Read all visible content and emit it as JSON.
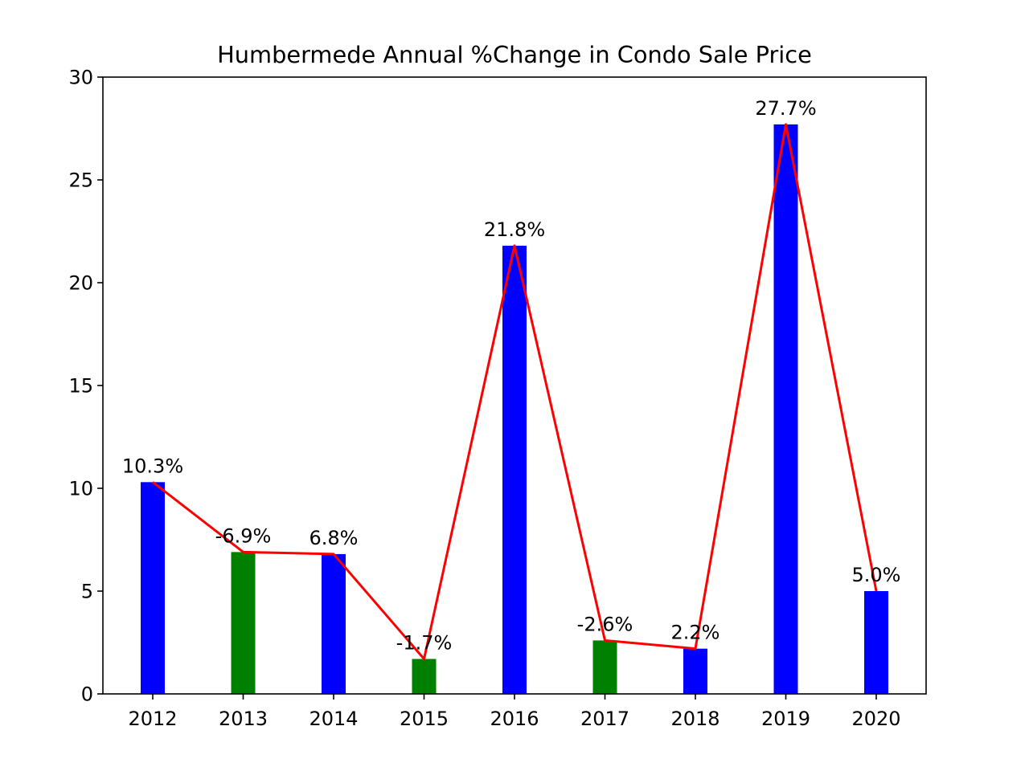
{
  "chart_data": {
    "type": "bar",
    "title": "Humbermede Annual %Change in Condo Sale Price",
    "xlabel": "",
    "ylabel": "",
    "ylim": [
      0,
      30
    ],
    "yticks": [
      "0",
      "5",
      "10",
      "15",
      "20",
      "25",
      "30"
    ],
    "categories": [
      "2012",
      "2013",
      "2014",
      "2015",
      "2016",
      "2017",
      "2018",
      "2019",
      "2020"
    ],
    "values": [
      10.3,
      6.9,
      6.8,
      1.7,
      21.8,
      2.6,
      2.2,
      27.7,
      5.0
    ],
    "bar_labels": [
      "10.3%",
      "-6.9%",
      "6.8%",
      "-1.7%",
      "21.8%",
      "-2.6%",
      "2.2%",
      "27.7%",
      "5.0%"
    ],
    "bar_colors": [
      "#0000ff",
      "#008000",
      "#0000ff",
      "#008000",
      "#0000ff",
      "#008000",
      "#0000ff",
      "#0000ff",
      "#0000ff"
    ],
    "line_color": "#ff0000",
    "grid": false,
    "legend": "none"
  }
}
